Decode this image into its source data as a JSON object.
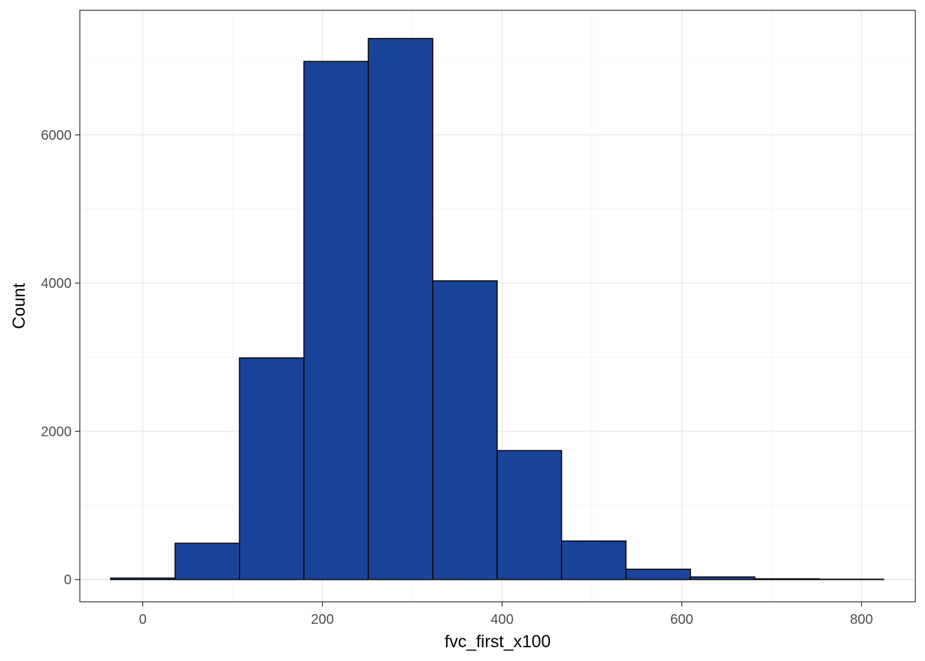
{
  "chart_data": {
    "type": "bar",
    "subtype": "histogram",
    "title": "",
    "xlabel": "fvc_first_x100",
    "ylabel": "Count",
    "bin_edges": [
      -35.7,
      36.0,
      107.7,
      179.4,
      251.1,
      322.8,
      394.5,
      466.2,
      537.9,
      609.6,
      681.3,
      753.0,
      824.7
    ],
    "values": [
      20,
      490,
      2990,
      6990,
      7300,
      4030,
      1740,
      520,
      140,
      35,
      10,
      5
    ],
    "xlim": [
      -70,
      860
    ],
    "ylim": [
      -300,
      7680
    ],
    "x_ticks": [
      0,
      200,
      400,
      600,
      800
    ],
    "y_ticks": [
      0,
      2000,
      4000,
      6000
    ],
    "x_tick_labels": [
      "0",
      "200",
      "400",
      "600",
      "800"
    ],
    "y_tick_labels": [
      "0",
      "2000",
      "4000",
      "6000"
    ],
    "grid": true,
    "legend": "none",
    "colors": {
      "fill": "#1a4499",
      "outline": "#000000",
      "grid": "#ebebeb",
      "panel_border": "#333333"
    }
  }
}
